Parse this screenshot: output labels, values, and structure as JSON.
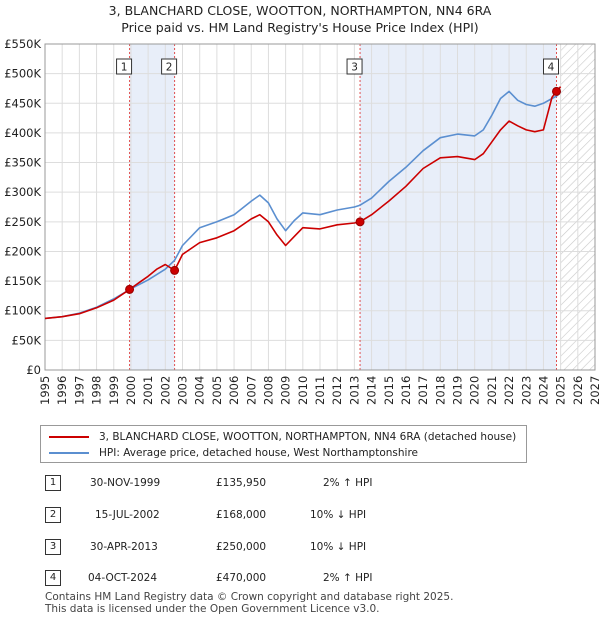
{
  "title_line1": "3, BLANCHARD CLOSE, WOOTTON, NORTHAMPTON, NN4 6RA",
  "title_line2": "Price paid vs. HM Land Registry's House Price Index (HPI)",
  "colors": {
    "property": "#cc0000",
    "hpi": "#5b8fd0",
    "shade": "#e8eef9",
    "grid": "#dddddd"
  },
  "chart_data": {
    "type": "line",
    "xlim": [
      1995,
      2027
    ],
    "ylim": [
      0,
      550000
    ],
    "x_ticks": [
      1995,
      1996,
      1997,
      1998,
      1999,
      2000,
      2001,
      2002,
      2003,
      2004,
      2005,
      2006,
      2007,
      2008,
      2009,
      2010,
      2011,
      2012,
      2013,
      2014,
      2015,
      2016,
      2017,
      2018,
      2019,
      2020,
      2021,
      2022,
      2023,
      2024,
      2025,
      2026,
      2027
    ],
    "y_ticks": [
      {
        "value": 0,
        "label": "£0"
      },
      {
        "value": 50000,
        "label": "£50K"
      },
      {
        "value": 100000,
        "label": "£100K"
      },
      {
        "value": 150000,
        "label": "£150K"
      },
      {
        "value": 200000,
        "label": "£200K"
      },
      {
        "value": 250000,
        "label": "£250K"
      },
      {
        "value": 300000,
        "label": "£300K"
      },
      {
        "value": 350000,
        "label": "£350K"
      },
      {
        "value": 400000,
        "label": "£400K"
      },
      {
        "value": 450000,
        "label": "£450K"
      },
      {
        "value": 500000,
        "label": "£500K"
      },
      {
        "value": 550000,
        "label": "£550K"
      }
    ],
    "shaded_ranges": [
      [
        1999.92,
        2002.54
      ],
      [
        2013.33,
        2024.76
      ]
    ],
    "future_start": 2025.0,
    "series": [
      {
        "name": "3, BLANCHARD CLOSE, WOOTTON, NORTHAMPTON, NN4 6RA (detached house)",
        "color": "#cc0000",
        "x": [
          1995.0,
          1996.0,
          1997.0,
          1998.0,
          1999.0,
          1999.92,
          2000.5,
          2001.0,
          2001.5,
          2002.0,
          2002.54,
          2003.0,
          2004.0,
          2005.0,
          2006.0,
          2007.0,
          2007.5,
          2008.0,
          2008.5,
          2009.0,
          2009.5,
          2010.0,
          2011.0,
          2012.0,
          2013.0,
          2013.33,
          2014.0,
          2015.0,
          2016.0,
          2017.0,
          2018.0,
          2019.0,
          2020.0,
          2020.5,
          2021.0,
          2021.5,
          2022.0,
          2022.5,
          2023.0,
          2023.5,
          2024.0,
          2024.5,
          2024.76,
          2025.0
        ],
        "y": [
          87000,
          90000,
          95000,
          105000,
          118000,
          135950,
          148000,
          158000,
          170000,
          178000,
          168000,
          195000,
          215000,
          223000,
          235000,
          255000,
          262000,
          250000,
          228000,
          210000,
          225000,
          240000,
          238000,
          245000,
          248000,
          250000,
          262000,
          285000,
          310000,
          340000,
          358000,
          360000,
          355000,
          365000,
          385000,
          405000,
          420000,
          412000,
          405000,
          402000,
          405000,
          460000,
          470000,
          478000
        ]
      },
      {
        "name": "HPI: Average price, detached house, West Northamptonshire",
        "color": "#5b8fd0",
        "x": [
          1995.0,
          1996.0,
          1997.0,
          1998.0,
          1999.0,
          2000.0,
          2001.0,
          2002.0,
          2002.54,
          2003.0,
          2004.0,
          2005.0,
          2006.0,
          2007.0,
          2007.5,
          2008.0,
          2008.5,
          2009.0,
          2009.5,
          2010.0,
          2011.0,
          2012.0,
          2013.0,
          2013.33,
          2014.0,
          2015.0,
          2016.0,
          2017.0,
          2018.0,
          2019.0,
          2020.0,
          2020.5,
          2021.0,
          2021.5,
          2022.0,
          2022.5,
          2023.0,
          2023.5,
          2024.0,
          2024.5,
          2024.76,
          2025.0
        ],
        "y": [
          87000,
          90000,
          96000,
          106000,
          120000,
          137000,
          152000,
          170000,
          185000,
          210000,
          240000,
          250000,
          262000,
          285000,
          295000,
          282000,
          255000,
          235000,
          252000,
          265000,
          262000,
          270000,
          275000,
          278000,
          290000,
          318000,
          342000,
          370000,
          392000,
          398000,
          395000,
          405000,
          430000,
          458000,
          470000,
          455000,
          448000,
          445000,
          450000,
          458000,
          462000,
          470000
        ]
      }
    ],
    "sales": [
      {
        "label": "1",
        "x": 1999.92,
        "y": 135950
      },
      {
        "label": "2",
        "x": 2002.54,
        "y": 168000
      },
      {
        "label": "3",
        "x": 2013.33,
        "y": 250000
      },
      {
        "label": "4",
        "x": 2024.76,
        "y": 470000
      }
    ]
  },
  "legend": {
    "property": "3, BLANCHARD CLOSE, WOOTTON, NORTHAMPTON, NN4 6RA (detached house)",
    "hpi": "HPI: Average price, detached house, West Northamptonshire"
  },
  "transactions": [
    {
      "num": "1",
      "date": "30-NOV-1999",
      "price": "£135,950",
      "hpi": "2% ↑ HPI"
    },
    {
      "num": "2",
      "date": "15-JUL-2002",
      "price": "£168,000",
      "hpi": "10% ↓ HPI"
    },
    {
      "num": "3",
      "date": "30-APR-2013",
      "price": "£250,000",
      "hpi": "10% ↓ HPI"
    },
    {
      "num": "4",
      "date": "04-OCT-2024",
      "price": "£470,000",
      "hpi": "2% ↑ HPI"
    }
  ],
  "footer_line1": "Contains HM Land Registry data © Crown copyright and database right 2025.",
  "footer_line2": "This data is licensed under the Open Government Licence v3.0."
}
